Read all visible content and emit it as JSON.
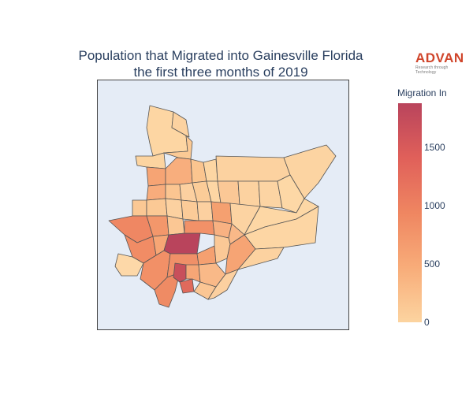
{
  "title": {
    "line1": "Population that Migrated into Gainesville Florida",
    "line2": "the first three months of 2019"
  },
  "logo": {
    "name": "ADVAN",
    "tagline": "Research through Technology",
    "color": "#d0452b"
  },
  "colorbar": {
    "title": "Migration In",
    "min": 0,
    "max": 1880,
    "ticks": [
      0,
      500,
      1000,
      1500
    ],
    "colorscale": [
      "#fcd4a0",
      "#f8ac79",
      "#ef8661",
      "#e0605a",
      "#b9445c"
    ]
  },
  "map": {
    "background": "#e5ecf6",
    "border_color": "#555555"
  }
}
